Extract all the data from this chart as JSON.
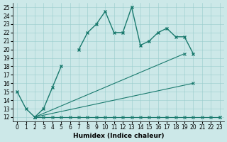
{
  "xlabel": "Humidex (Indice chaleur)",
  "x_values": [
    0,
    1,
    2,
    3,
    4,
    5,
    6,
    7,
    8,
    9,
    10,
    11,
    12,
    13,
    14,
    15,
    16,
    17,
    18,
    19,
    20,
    21,
    22,
    23
  ],
  "line_main": [
    15,
    13,
    12,
    13,
    15.5,
    18,
    null,
    20,
    22,
    23,
    24.5,
    22,
    22,
    25,
    20.5,
    21,
    22,
    22.5,
    21.5,
    21.5,
    19.5,
    null,
    null,
    null
  ],
  "line_flat": [
    null,
    null,
    12,
    12,
    12,
    12,
    12,
    12,
    12,
    12,
    12,
    12,
    12,
    12,
    12,
    12,
    12,
    12,
    12,
    12,
    12,
    12,
    12,
    12
  ],
  "line_diag_top": [
    null,
    null,
    12,
    null,
    null,
    null,
    null,
    null,
    null,
    null,
    null,
    null,
    null,
    null,
    null,
    null,
    null,
    null,
    null,
    19.5,
    null,
    null,
    null,
    null
  ],
  "line_diag_mid": [
    null,
    null,
    12,
    null,
    null,
    null,
    null,
    null,
    null,
    null,
    null,
    null,
    null,
    null,
    null,
    null,
    null,
    null,
    null,
    null,
    16,
    null,
    null,
    null
  ],
  "fan_lines": [
    {
      "x": [
        2,
        19
      ],
      "y": [
        12,
        19.5
      ]
    },
    {
      "x": [
        2,
        20
      ],
      "y": [
        12,
        16
      ]
    },
    {
      "x": [
        2,
        23
      ],
      "y": [
        12,
        12
      ]
    }
  ],
  "bg_color": "#cce8e8",
  "line_color": "#1a7a6e",
  "grid_color": "#99cccc",
  "xlim": [
    -0.5,
    23.5
  ],
  "ylim": [
    11.5,
    25.5
  ],
  "yticks": [
    12,
    13,
    14,
    15,
    16,
    17,
    18,
    19,
    20,
    21,
    22,
    23,
    24,
    25
  ],
  "xticks": [
    0,
    1,
    2,
    3,
    4,
    5,
    6,
    7,
    8,
    9,
    10,
    11,
    12,
    13,
    14,
    15,
    16,
    17,
    18,
    19,
    20,
    21,
    22,
    23
  ],
  "tick_fontsize": 5.5,
  "xlabel_fontsize": 6.5
}
